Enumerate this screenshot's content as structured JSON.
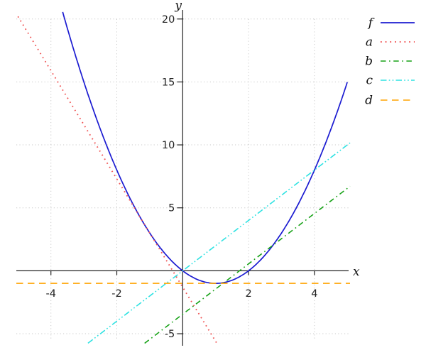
{
  "chart_data": {
    "type": "line",
    "title": "",
    "xlabel": "x",
    "ylabel": "y",
    "xlim": [
      -5.05,
      5.08
    ],
    "ylim": [
      -5.76,
      20.55
    ],
    "x_ticks": [
      -4,
      -2,
      2,
      4
    ],
    "y_ticks": [
      20,
      15,
      10,
      5,
      -5
    ],
    "grid": true,
    "legend_position": "outside-top-right",
    "colors": {
      "axis": "#222222",
      "grid": "#c9c9c9",
      "tick_text": "#222222",
      "f": "#1b1bd1",
      "a": "#f05454",
      "b": "#17a217",
      "c": "#2fe2e2",
      "d": "#ffa400"
    },
    "series": [
      {
        "name": "f",
        "label": "f",
        "color": "#1b1bd1",
        "style": "solid",
        "width": 1.7,
        "type": "quadratic",
        "coeffs": {
          "a": 1,
          "b": -2,
          "c": 0
        },
        "equation": "f(x) = x^2 - 2x",
        "domain": [
          -3.643,
          5.02
        ]
      },
      {
        "name": "a",
        "label": "a",
        "color": "#f05454",
        "style": "dotted",
        "width": 1.9,
        "type": "linear",
        "slope": -4.3,
        "intercept": -1.3,
        "equation": "a(x) = -4.3x - 1.3",
        "domain": [
          -5.0,
          1.037
        ]
      },
      {
        "name": "b",
        "label": "b",
        "color": "#17a217",
        "style": "dashdot",
        "width": 1.6,
        "type": "linear",
        "slope": 2,
        "intercept": -3.45,
        "equation": "b(x) = 2x - 3.45",
        "domain": [
          -1.155,
          5.08
        ]
      },
      {
        "name": "c",
        "label": "c",
        "color": "#2fe2e2",
        "style": "dashdotdot",
        "width": 1.6,
        "type": "linear",
        "slope": 2,
        "intercept": 0,
        "equation": "c(x) = 2x",
        "domain": [
          -2.876,
          5.08
        ]
      },
      {
        "name": "d",
        "label": "d",
        "color": "#ffa400",
        "style": "dashed",
        "width": 1.6,
        "type": "linear",
        "slope": 0,
        "intercept": -1,
        "equation": "d(x) = -1",
        "domain": [
          -5.05,
          5.08
        ]
      }
    ]
  }
}
